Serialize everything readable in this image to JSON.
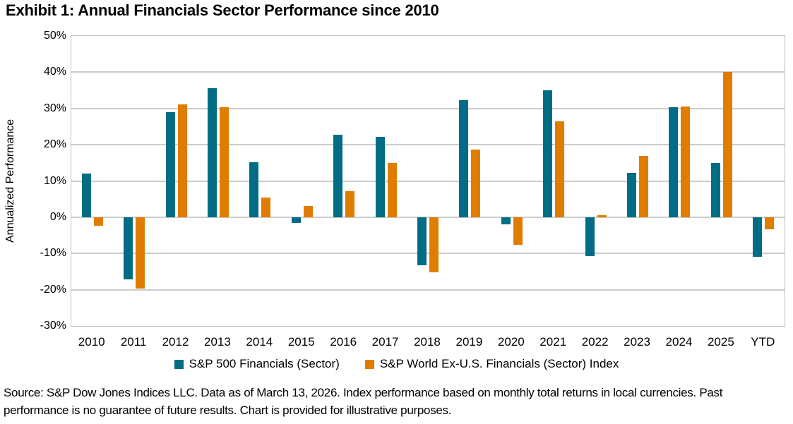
{
  "title": "Exhibit 1: Annual Financials Sector Performance since 2010",
  "source_note": "Source: S&P Dow Jones Indices LLC. Data as of March 13, 2026. Index performance based on monthly total returns in local currencies. Past performance is no guarantee of future results. Chart is provided for illustrative purposes.",
  "colors": {
    "series1": "#006D85",
    "series2": "#E07C00",
    "gridline": "#cccccc",
    "plot_border": "#bfbfbf"
  },
  "chart_data": {
    "type": "bar",
    "title": "Exhibit 1: Annual Financials Sector Performance since 2010",
    "xlabel": "",
    "ylabel": "Annualized Performance",
    "ylim": [
      -30,
      50
    ],
    "ytick_step": 10,
    "ytick_suffix": "%",
    "grid": true,
    "legend_position": "bottom",
    "categories": [
      "2010",
      "2011",
      "2012",
      "2013",
      "2014",
      "2015",
      "2016",
      "2017",
      "2018",
      "2019",
      "2020",
      "2021",
      "2022",
      "2023",
      "2024",
      "2025",
      "YTD"
    ],
    "series": [
      {
        "name": "S&P 500 Financials (Sector)",
        "color": "#006D85",
        "values": [
          12.0,
          -17.2,
          29.0,
          35.5,
          15.2,
          -1.5,
          22.8,
          22.2,
          -13.2,
          32.2,
          -2.0,
          35.0,
          -10.8,
          12.2,
          30.4,
          15.0,
          -11.0
        ]
      },
      {
        "name": "S&P World Ex-U.S. Financials (Sector) Index",
        "color": "#E07C00",
        "values": [
          -2.4,
          -19.6,
          31.2,
          30.3,
          5.5,
          3.1,
          7.2,
          14.9,
          -15.3,
          18.6,
          -7.6,
          26.5,
          0.6,
          16.9,
          30.5,
          40.0,
          -3.3
        ]
      }
    ]
  }
}
